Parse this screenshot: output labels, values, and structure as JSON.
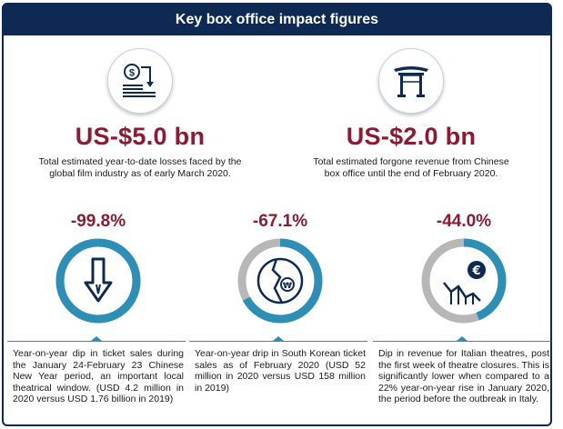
{
  "header": {
    "title": "Key box office impact figures"
  },
  "top_figures": [
    {
      "icon": "dollar-losses-icon",
      "value": "US-$5.0 bn",
      "description": "Total estimated year-to-date losses faced by the global film industry as of early March 2020."
    },
    {
      "icon": "chinese-gate-icon",
      "value": "US-$2.0 bn",
      "description": "Total estimated forgone revenue from Chinese box office until the end of February 2020."
    }
  ],
  "stats": [
    {
      "percent": "-99.8%",
      "ring_fraction": 0.998,
      "icon": "down-arrow-icon",
      "description": "Year-on-year dip in ticket sales during the January 24-February 23 Chinese New Year period, an important local theatrical window. (USD 4.2 million in 2020 versus USD 1.76 billion in 2019)"
    },
    {
      "percent": "-67.1%",
      "ring_fraction": 0.671,
      "icon": "cracked-won-coin-icon",
      "description": "Year-on-year drip in South Korean ticket sales as of February 2020 (USD 52 million in 2020 versus USD 158 million in 2019)"
    },
    {
      "percent": "-44.0%",
      "ring_fraction": 0.44,
      "icon": "euro-decline-chart-icon",
      "description": "Dip in revenue for Italian theatres, post the first week of theatre closures. This is significantly lower when compared to a 22% year-on-year rise in January 2020, the period before the outbreak in Italy."
    }
  ],
  "colors": {
    "navy": "#0f2a52",
    "accent": "#8b1a32",
    "ring": "#2e8fb6",
    "ring_track": "#b7b7b7"
  }
}
